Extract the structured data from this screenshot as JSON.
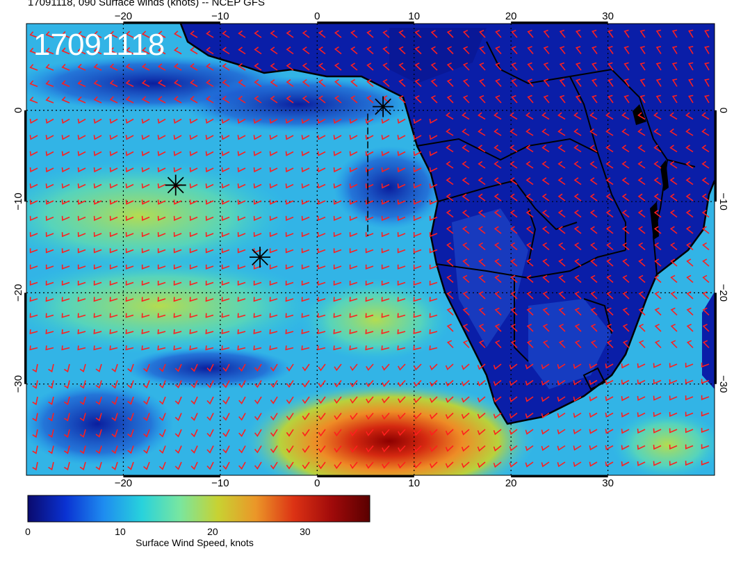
{
  "title": "17091118, 090 Surface winds (knots) -- NCEP GFS",
  "timestamp_label": "17091118",
  "longitude_ticks": [
    "-20",
    "-10",
    "0",
    "10",
    "20",
    "30"
  ],
  "latitude_ticks": [
    "0",
    "-10",
    "-20",
    "-30"
  ],
  "colorbar": {
    "caption": "Surface Wind Speed, knots",
    "ticks": [
      "0",
      "10",
      "20",
      "30"
    ],
    "range": [
      0,
      37
    ],
    "colors": [
      "#0a0a6e",
      "#0a32d2",
      "#1e8cf0",
      "#28d2dc",
      "#78e6a0",
      "#c8d232",
      "#eb9628",
      "#dc3214",
      "#a00a0a",
      "#5a0000"
    ]
  },
  "map": {
    "lon_range": [
      -30,
      41
    ],
    "lat_range": [
      -40,
      9.5
    ],
    "wind_barb_color": "#ff1e1e",
    "markers": [
      {
        "name": "marker-1",
        "lon": 6.8,
        "lat": 0.4
      },
      {
        "name": "marker-2",
        "lon": -14.6,
        "lat": -8.2
      },
      {
        "name": "marker-3",
        "lon": -5.9,
        "lat": -16.1
      }
    ]
  }
}
